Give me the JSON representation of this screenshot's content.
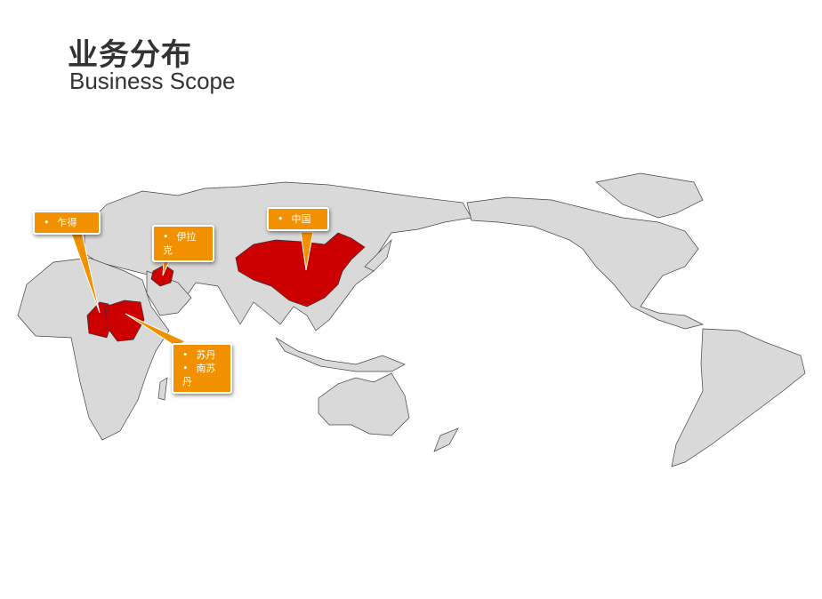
{
  "header": {
    "title": "业务分布",
    "subtitle": "Business Scope"
  },
  "colors": {
    "land": "#d9d9d9",
    "highlight": "#cc0000",
    "callout": "#f29100"
  },
  "callouts": [
    {
      "items": [
        "乍得"
      ]
    },
    {
      "items": [
        "伊拉克"
      ]
    },
    {
      "items": [
        "中国"
      ]
    },
    {
      "items": [
        "苏丹",
        "南苏丹"
      ]
    }
  ]
}
